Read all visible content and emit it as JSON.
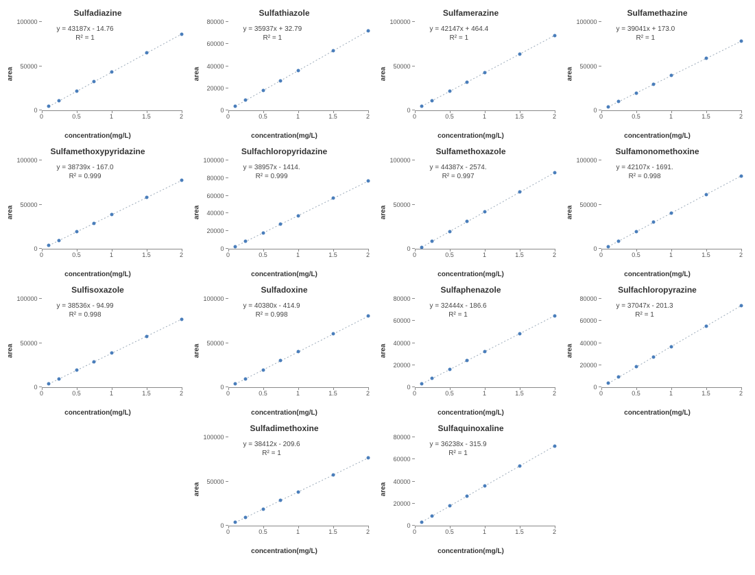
{
  "global": {
    "xlabel": "concentration(mg/L)",
    "ylabel": "area",
    "xlim": [
      0,
      2
    ],
    "x_ticks": [
      0,
      0.5,
      1,
      1.5,
      2
    ],
    "x_points": [
      0.1,
      0.25,
      0.5,
      0.75,
      1.0,
      1.5,
      2.0
    ],
    "marker_color": "#4a7ebb",
    "trendline_color": "#9aa9b8",
    "trendline_dash": "2,3",
    "trendline_width": 1,
    "background_color": "#ffffff",
    "title_fontsize": 12,
    "label_fontsize": 10,
    "tick_fontsize": 9
  },
  "charts": [
    {
      "title": "Sulfadiazine",
      "equation": "y = 43187x - 14.76",
      "r2": "R² = 1",
      "slope": 43187,
      "intercept": -14.76,
      "ymax": 100000,
      "ytick_step": 50000
    },
    {
      "title": "Sulfathiazole",
      "equation": "y = 35937x + 32.79",
      "r2": "R² = 1",
      "slope": 35937,
      "intercept": 32.79,
      "ymax": 80000,
      "ytick_step": 20000
    },
    {
      "title": "Sulfamerazine",
      "equation": "y = 42147x + 464.4",
      "r2": "R² = 1",
      "slope": 42147,
      "intercept": 464.4,
      "ymax": 100000,
      "ytick_step": 50000
    },
    {
      "title": "Sulfamethazine",
      "equation": "y = 39041x + 173.0",
      "r2": "R² = 1",
      "slope": 39041,
      "intercept": 173.0,
      "ymax": 100000,
      "ytick_step": 50000
    },
    {
      "title": "Sulfamethoxypyridazine",
      "equation": "y = 38739x - 167.0",
      "r2": "R² = 0.999",
      "slope": 38739,
      "intercept": -167.0,
      "ymax": 100000,
      "ytick_step": 50000
    },
    {
      "title": "Sulfachloropyridazine",
      "equation": "y = 38957x - 1414.",
      "r2": "R² = 0.999",
      "slope": 38957,
      "intercept": -1414,
      "ymax": 100000,
      "ytick_step": 20000
    },
    {
      "title": "Sulfamethoxazole",
      "equation": "y = 44387x - 2574.",
      "r2": "R² = 0.997",
      "slope": 44387,
      "intercept": -2574,
      "ymax": 100000,
      "ytick_step": 50000
    },
    {
      "title": "Sulfamonomethoxine",
      "equation": "y = 42107x - 1691.",
      "r2": "R² = 0.998",
      "slope": 42107,
      "intercept": -1691,
      "ymax": 100000,
      "ytick_step": 50000
    },
    {
      "title": "Sulfisoxazole",
      "equation": "y = 38536x - 94.99",
      "r2": "R² = 0.998",
      "slope": 38536,
      "intercept": -94.99,
      "ymax": 100000,
      "ytick_step": 50000
    },
    {
      "title": "Sulfadoxine",
      "equation": "y = 40380x - 414.9",
      "r2": "R² = 0.998",
      "slope": 40380,
      "intercept": -414.9,
      "ymax": 100000,
      "ytick_step": 50000
    },
    {
      "title": "Sulfaphenazole",
      "equation": "y = 32444x - 186.6",
      "r2": "R² = 1",
      "slope": 32444,
      "intercept": -186.6,
      "ymax": 80000,
      "ytick_step": 20000
    },
    {
      "title": "Sulfachloropyrazine",
      "equation": "y = 37047x - 201.3",
      "r2": "R² = 1",
      "slope": 37047,
      "intercept": -201.3,
      "ymax": 80000,
      "ytick_step": 20000
    },
    {
      "title": "Sulfadimethoxine",
      "equation": "y = 38412x - 209.6",
      "r2": "R² = 1",
      "slope": 38412,
      "intercept": -209.6,
      "ymax": 100000,
      "ytick_step": 50000
    },
    {
      "title": "Sulfaquinoxaline",
      "equation": "y = 36238x - 315.9",
      "r2": "R² = 1",
      "slope": 36238,
      "intercept": -315.9,
      "ymax": 80000,
      "ytick_step": 20000
    }
  ]
}
